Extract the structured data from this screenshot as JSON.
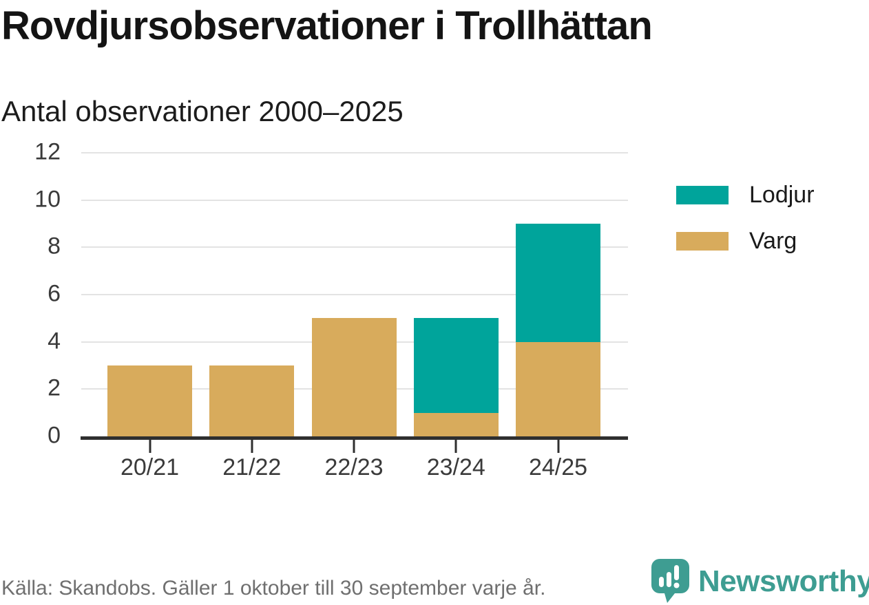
{
  "header": {
    "title": "Rovdjursobservationer i Trollhättan",
    "subtitle": "Antal observationer 2000–2025"
  },
  "chart_data": {
    "type": "bar",
    "stacked": true,
    "title": "Rovdjursobservationer i Trollhättan",
    "subtitle": "Antal observationer 2000–2025",
    "categories": [
      "20/21",
      "21/22",
      "22/23",
      "23/24",
      "24/25"
    ],
    "series": [
      {
        "name": "Varg",
        "color": "#d8ab5c",
        "values": [
          3,
          3,
          5,
          1,
          4
        ]
      },
      {
        "name": "Lodjur",
        "color": "#00a49b",
        "values": [
          0,
          0,
          0,
          4,
          5
        ]
      }
    ],
    "xlabel": "",
    "ylabel": "",
    "ylim": [
      0,
      12
    ],
    "yticks": [
      0,
      2,
      4,
      6,
      8,
      10,
      12
    ],
    "grid": true,
    "legend": {
      "position": "right",
      "entries": [
        {
          "label": "Lodjur",
          "color": "#00a49b"
        },
        {
          "label": "Varg",
          "color": "#d8ab5c"
        }
      ]
    }
  },
  "footer": {
    "source": "Källa: Skandobs. Gäller 1 oktober till 30 september varje år.",
    "brand": "Newsworthy",
    "brand_color": "#3e9d92"
  },
  "colors": {
    "lodjur": "#00a49b",
    "varg": "#d8ab5c",
    "axis": "#2f2f2f",
    "gridline": "#e3e3e3",
    "axis_text": "#3a3a3a",
    "source_text": "#6f6f6f",
    "brand_teal": "#3e9d92"
  }
}
